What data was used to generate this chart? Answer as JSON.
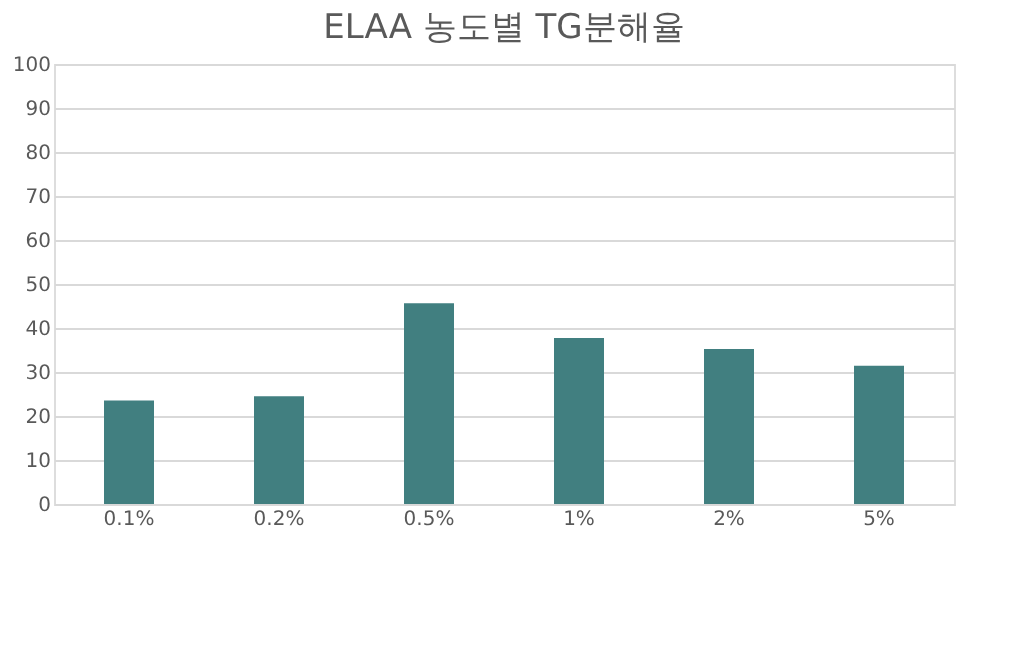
{
  "chart_data": {
    "type": "bar",
    "title": "ELAA 농도별 TG분해율",
    "categories": [
      "0.1%",
      "0.2%",
      "0.5%",
      "1%",
      "2%",
      "5%"
    ],
    "values": [
      23.5,
      24.5,
      45.6,
      37.7,
      35.2,
      31.4
    ],
    "color": "#417f80",
    "ylim": [
      0,
      100
    ],
    "yticks": [
      0,
      10,
      20,
      30,
      40,
      50,
      60,
      70,
      80,
      90,
      100
    ],
    "grid": "y"
  }
}
